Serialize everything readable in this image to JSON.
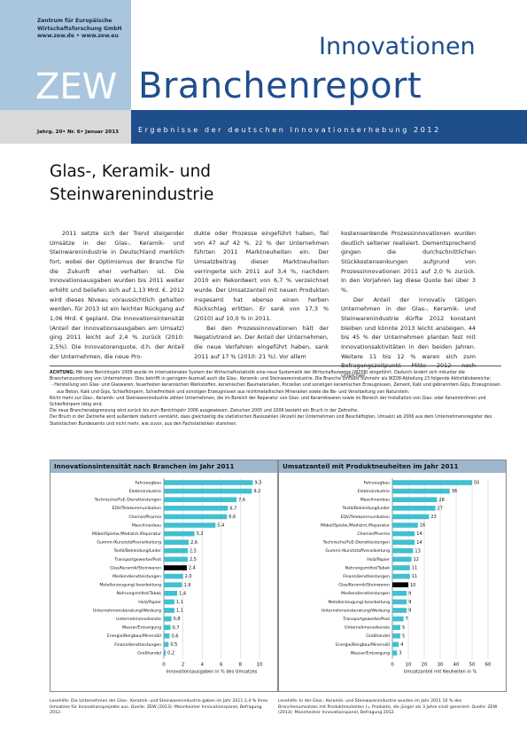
{
  "header": {
    "institute_lines": [
      "Zentrum für Europäische",
      "Wirtschaftsforschung GmbH",
      "www.zew.de • www.zew.eu"
    ],
    "zew": "ZEW",
    "innovationen": "Innovationen",
    "branchenreport": "Branchenreport",
    "issue": "Jahrg. 20• Nr. 6• Januar 2013",
    "tagline": "Ergebnisse der deutschen Innovationserhebung 2012"
  },
  "title_lines": [
    "Glas-, Keramik- und",
    "Steinwarenindustrie"
  ],
  "columns": [
    [
      "2011 setzte sich der Trend steigender Umsätze in der Glas-, Keramik- und Steinwarenindustrie in Deutschland merklich fort, wobei der Optimismus der Branche für die Zukunft eher verhalten ist. Die Innovationsausgaben wurden bis 2011 weiter erhöht und beliefen sich auf 1,13 Mrd. €. 2012 wird dieses Niveau voraussichtlich gehalten werden, für 2013 ist ein leichter Rückgang auf 1,06 Mrd. € geplant. Die Innovationsintensität (Anteil der Innovationsausgaben am Umsatz) ging 2011 leicht auf 2,4 % zurück (2010: 2,5%). Die Innovatorenquote, d.h. der Anteil der Unternehmen, die neue Pro-"
    ],
    [
      "dukte oder Prozesse eingeführt haben, fiel von 47 auf 42 %. 22 % der Unternehmen führten 2011 Marktneuheiten ein. Der Umsatzbeitrag dieser Marktneuheiten verringerte sich 2011 auf 3,4 %, nachdem 2010 ein Rekordwert von 6,7 % verzeichnet wurde. Der Umsatzanteil mit neuen Produkten insgesamt hat ebenso einen herben Rückschlag erlitten. Er sank von 17,3 % (2010) auf 10,0 % in 2011.",
      "Bei den Prozessinnovationen hält der Negativtrend an. Der Anteil der Unternehmen, die neue Verfahren eingeführt haben, sank 2011 auf 17 % (2010: 21 %). Vor allem"
    ],
    [
      "kostensenkende Prozessinnovationen wurden deutlich seltener realisiert. Dementsprechend gingen die durchschnittlichen Stückkostensenkungen aufgrund von Prozessinnovationen 2011 auf 2,0 % zurück. In den Vorjahren lag diese Quote bei über 3 %.",
      "Der Anteil der innovativ tätigen Unternehmen in der Glas-, Keramik- und Steinwarenindustrie dürfte 2012 konstant bleiben und könnte 2013 leicht ansteigen. 44 bis 45 % der Unternehmen planten fest mit Innovationsaktivitäten in den beiden Jahren. Weitere 11 bis 12 % waren sich zum Befragungszeitpunkt Mitte 2012 noch unsicher."
    ]
  ],
  "note": {
    "label": "ACHTUNG:",
    "text1": " Mit dem Berichtsjahr 2008 wurde im internationalen System der Wirtschaftsstatistik eine neue Systematik der Wirtschaftszweige (WZ08) eingeführt. Dadurch ändert sich mitunter die Branchenzuordnung von Unternehmen. Dies betrifft in geringem Ausmaß auch die Glas-, Keramik- und Steinwarenindustrie. Die Branche umfasst nunmehr als WZ08-Abteilung 23 folgende Aktivitätsbereiche:",
    "bullet": "- Herstellung von Glas- und Glaswaren, feuerfesten keramischen Werkstoffen, keramischen Baumaterialien, Porzellan und sonstigen keramischen Erzeugnissen, Zement, Kalk und gebranntem Gips, Erzeugnissen aus Beton, Kalk und Gips, Schleifkörpern, Schleifmitteln und sonstigen Erzeugnissen aus nichtmetallischen Mineralien sowie die Be- und Verarbeitung von Naturstein.",
    "text2": "Nicht mehr zur Glas-, Keramik- und Steinwarenindustrie zählen Unternehmen, die im Bereich der Reparatur von Glas- und Keramikwaren sowie im Bereich der Installation von Glas- oder Keramikröhren und Schleifkörpern tätig sind.",
    "text3": "Die neue Branchenabgrenzung wird zurück bis zum Berichtsjahr 2006 ausgewiesen. Zwischen 2005 und 2006 besteht ein Bruch in der Zeitreihe.",
    "text4": "Der Bruch in der Zeitreihe wird außerdem dadurch verstärkt, dass gleichzeitig die statistischen Basiszahlen (Anzahl der Unternehmen und Beschäftigten, Umsatz) ab 2006 aus dem Unternehmensregister des Statistischen Bundesamts und nicht mehr, wie zuvor, aus den Fachstatistiken stammen."
  },
  "colors": {
    "bar": "#40c0d0",
    "highlight": "#000000",
    "panel_title_bg": "#9fb6cf",
    "header_blue": "#1f4e8c",
    "header_light": "#a9c6de"
  },
  "chart_data": [
    {
      "type": "bar",
      "orientation": "horizontal",
      "title": "Innovationsintensität nach Branchen im Jahr 2011",
      "xlabel": "Innovationsausgaben in % des Umsatzes",
      "xlim": [
        0,
        10
      ],
      "xticks": [
        "0",
        "2",
        "4",
        "6",
        "8",
        "10"
      ],
      "highlight": "Glas/Keramik/Steinwaren",
      "categories": [
        "Fahrzeugbau",
        "Elektroindustrie",
        "Technische/FuE-Dienstleistungen",
        "EDV/Telekommunikation",
        "Chemie/Pharma",
        "Maschinenbau",
        "Möbel/Spielw./Medizint./Reparatur",
        "Gummi-/Kunststoffverarbeitung",
        "Textil/Bekleidung/Leder",
        "Transportgewerbe/Post",
        "Glas/Keramik/Steinwaren",
        "Mediendienstleistungen",
        "Metallerzeugung/-bearbeitung",
        "Nahrungsmittel/Tabak",
        "Holz/Papier",
        "Unternehmensberatung/Werbung",
        "Unternehmensdienste",
        "Wasser/Entsorgung",
        "Energie/Bergbau/Mineralöl",
        "Finanzdienstleistungen",
        "Großhandel"
      ],
      "values": [
        9.3,
        9.2,
        7.6,
        6.7,
        6.6,
        5.4,
        3.2,
        2.6,
        2.5,
        2.5,
        2.4,
        2.0,
        1.9,
        1.4,
        1.1,
        1.1,
        0.8,
        0.7,
        0.6,
        0.5,
        0.2
      ],
      "value_labels": [
        "9,3",
        "9,2",
        "7,6",
        "6,7",
        "6,6",
        "5,4",
        "3,2",
        "2,6",
        "2,5",
        "2,5",
        "2,4",
        "2,0",
        "1,9",
        "1,4",
        "1,1",
        "1,1",
        "0,8",
        "0,7",
        "0,6",
        "0,5",
        "0,2"
      ]
    },
    {
      "type": "bar",
      "orientation": "horizontal",
      "title": "Umsatzanteil mit Produktneuheiten im Jahr 2011",
      "xlabel": "Umsatzanteil mit Neuheiten in %",
      "xlim": [
        0,
        60
      ],
      "xticks": [
        "0",
        "10",
        "20",
        "30",
        "40",
        "50",
        "60"
      ],
      "highlight": "Glas/Keramik/Steinwaren",
      "categories": [
        "Fahrzeugbau",
        "Elektroindustrie",
        "Maschinenbau",
        "Textil/Bekleidung/Leder",
        "EDV/Telekommunikation",
        "Möbel/Spielw./Medizint./Reparatur",
        "Chemie/Pharma",
        "Technische/FuE-Dienstleistungen",
        "Gummi-/Kunststoffverarbeitung",
        "Holz/Papier",
        "Nahrungsmittel/Tabak",
        "Finanzdienstleistungen",
        "Glas/Keramik/Steinwaren",
        "Mediendienstleistungen",
        "Metallerzeugung/-bearbeitung",
        "Unternehmensberatung/Werbung",
        "Transportgewerbe/Post",
        "Unternehmensdienste",
        "Großhandel",
        "Energie/Bergbau/Mineralöl",
        "Wasser/Entsorgung"
      ],
      "values": [
        50,
        36,
        28,
        27,
        23,
        16,
        14,
        14,
        13,
        12,
        11,
        11,
        10,
        9,
        9,
        9,
        7,
        5,
        5,
        4,
        3
      ],
      "value_labels": [
        "50",
        "36",
        "28",
        "27",
        "23",
        "16",
        "14",
        "14",
        "13",
        "12",
        "11",
        "11",
        "10",
        "9",
        "9",
        "9",
        "7",
        "5",
        "5",
        "4",
        "3"
      ]
    }
  ],
  "captions": [
    "Lesehilfe: Die Unternehmen der Glas-, Keramik- und Steinwarenindustrie gaben im Jahr 2011 2,4 % ihres Umsatzes für Innovationsprojekte aus. Quelle: ZEW (2013): Mannheimer Innovationspanel, Befragung 2012.",
    "Lesehilfe: In der Glas-, Keramik- und Steinwarenindustrie wurden im Jahr 2011 10 % des Branchenumsatzes mit Produktneuheiten (= Produkte, die jünger als 3 Jahre sind) generiert. Quelle: ZEW (2013): Mannheimer Innovationspanel, Befragung 2012."
  ]
}
